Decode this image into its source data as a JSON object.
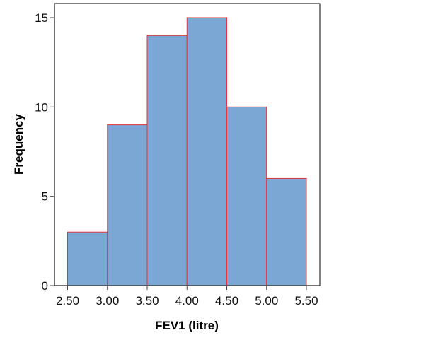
{
  "chart_data": {
    "type": "bar",
    "title": "",
    "xlabel": "FEV1 (litre)",
    "ylabel": "Frequency",
    "bins": [
      [
        2.5,
        3.0
      ],
      [
        3.0,
        3.5
      ],
      [
        3.5,
        4.0
      ],
      [
        4.0,
        4.5
      ],
      [
        4.5,
        5.0
      ],
      [
        5.0,
        5.5
      ]
    ],
    "values": [
      3,
      9,
      14,
      15,
      10,
      6
    ],
    "x_ticks": [
      "2.50",
      "3.00",
      "3.50",
      "4.00",
      "4.50",
      "5.00",
      "5.50"
    ],
    "x_tick_values": [
      2.5,
      3.0,
      3.5,
      4.0,
      4.5,
      5.0,
      5.5
    ],
    "y_ticks": [
      "0",
      "5",
      "10",
      "15"
    ],
    "y_tick_values": [
      0,
      5,
      10,
      15
    ],
    "xlim": [
      2.34,
      5.67
    ],
    "ylim": [
      0,
      15.8
    ],
    "grid": false,
    "colors": {
      "bar_fill": "#7aa7d4",
      "bar_edge": "#e8303c",
      "axis": "#444444"
    }
  }
}
